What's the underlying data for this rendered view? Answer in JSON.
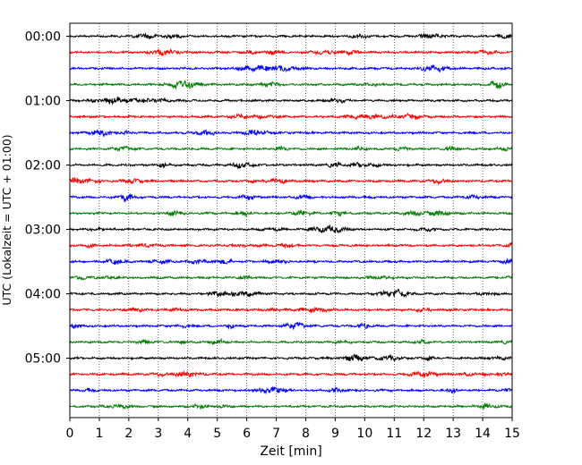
{
  "chart_data": {
    "type": "line",
    "subtype": "seismic-helicorder",
    "title": "",
    "xlabel": "Zeit  [min]",
    "ylabel": "UTC (Lokalzeit = UTC + 01:00)",
    "xlim": [
      0,
      15
    ],
    "x_ticks": [
      "0",
      "1",
      "2",
      "3",
      "4",
      "5",
      "6",
      "7",
      "8",
      "9",
      "10",
      "11",
      "12",
      "13",
      "14",
      "15"
    ],
    "y_tick_labels": [
      "00:00",
      "01:00",
      "02:00",
      "03:00",
      "04:00",
      "05:00"
    ],
    "trace_minutes_per_line": 15,
    "trace_count": 24,
    "trace_colors": [
      "#000000",
      "#ff0000",
      "#0000ff",
      "#008000"
    ],
    "vertical_grid": "dotted",
    "legend": "none"
  }
}
